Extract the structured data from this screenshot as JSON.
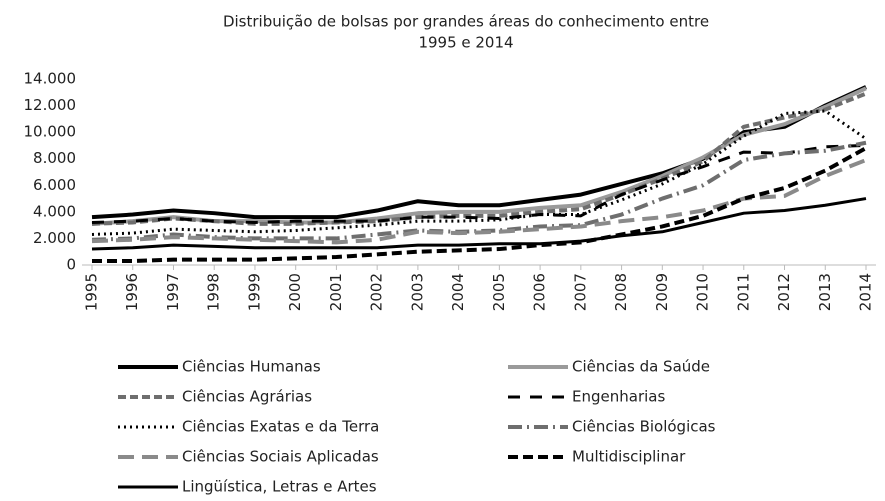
{
  "chart_data": {
    "type": "line",
    "title": [
      "Distribuição de bolsas por grandes áreas do conhecimento entre",
      "1995 e 2014"
    ],
    "categories": [
      "1995",
      "1996",
      "1997",
      "1998",
      "1999",
      "2000",
      "2001",
      "2002",
      "2003",
      "2004",
      "2005",
      "2006",
      "2007",
      "2008",
      "2009",
      "2010",
      "2011",
      "2012",
      "2013",
      "2014"
    ],
    "ylim": [
      0,
      14000
    ],
    "yticks": [
      0,
      {
        "value": 2000,
        "label": "2.000"
      },
      {
        "value": 4000,
        "label": "4.000"
      },
      {
        "value": 6000,
        "label": "6.000"
      },
      {
        "value": 8000,
        "label": "8.000"
      },
      {
        "value": 10000,
        "label": "10.000"
      },
      {
        "value": 12000,
        "label": "12.000"
      },
      {
        "value": 14000,
        "label": "14.000"
      }
    ],
    "legend": "bottom",
    "series": [
      {
        "name": "Ciências Humanas",
        "color": "#000000",
        "width": 4,
        "dash": "none",
        "values": [
          3600,
          3800,
          4100,
          3900,
          3600,
          3600,
          3600,
          4100,
          4800,
          4500,
          4500,
          4900,
          5300,
          6100,
          6900,
          8000,
          10000,
          10400,
          12000,
          13400
        ]
      },
      {
        "name": "Ciências da Saúde",
        "color": "#9a9a9a",
        "width": 4,
        "dash": "none",
        "values": [
          3100,
          3300,
          3600,
          3300,
          3300,
          3200,
          3200,
          3500,
          3900,
          4000,
          4000,
          4300,
          4500,
          5500,
          6700,
          8100,
          9800,
          10600,
          11900,
          13300
        ]
      },
      {
        "name": "Ciências Agrárias",
        "color": "#6e6e6e",
        "width": 4,
        "dash": "8 4",
        "values": [
          3100,
          3200,
          3500,
          3300,
          3100,
          3100,
          3200,
          3300,
          3600,
          3700,
          3700,
          4000,
          4200,
          5300,
          6500,
          7800,
          10400,
          11100,
          11700,
          12900
        ]
      },
      {
        "name": "Engenharias",
        "color": "#000000",
        "width": 3,
        "dash": "12 10",
        "values": [
          3200,
          3300,
          3500,
          3300,
          3200,
          3300,
          3300,
          3300,
          3600,
          3600,
          3500,
          3800,
          3700,
          5300,
          6400,
          7400,
          8500,
          8400,
          8900,
          9000
        ]
      },
      {
        "name": "Ciências Exatas e da Terra",
        "color": "#000000",
        "width": 3,
        "dash": "2 4",
        "values": [
          2300,
          2400,
          2700,
          2600,
          2500,
          2600,
          2800,
          3000,
          3300,
          3300,
          3400,
          3800,
          3800,
          4900,
          6100,
          7600,
          9700,
          11400,
          11600,
          9500
        ]
      },
      {
        "name": "Ciências Biológicas",
        "color": "#6e6e6e",
        "width": 4,
        "dash": "14 5 2 5",
        "values": [
          1900,
          2000,
          2300,
          2100,
          2000,
          2000,
          2000,
          2300,
          2600,
          2500,
          2600,
          2900,
          3000,
          3800,
          5000,
          6000,
          7900,
          8400,
          8600,
          9200
        ]
      },
      {
        "name": "Ciências Sociais Aplicadas",
        "color": "#8a8a8a",
        "width": 4,
        "dash": "16 8",
        "values": [
          1800,
          1900,
          2100,
          2000,
          1900,
          1800,
          1700,
          1900,
          2500,
          2400,
          2500,
          2700,
          2900,
          3300,
          3600,
          4100,
          5000,
          5200,
          6700,
          7900
        ]
      },
      {
        "name": "Multidisciplinar",
        "color": "#000000",
        "width": 4,
        "dash": "10 5",
        "values": [
          300,
          300,
          400,
          400,
          400,
          500,
          600,
          800,
          1000,
          1100,
          1200,
          1500,
          1700,
          2300,
          2900,
          3700,
          5000,
          5800,
          7100,
          8800
        ]
      },
      {
        "name": "Lingüística, Letras e Artes",
        "color": "#000000",
        "width": 3,
        "dash": "none",
        "values": [
          1200,
          1300,
          1500,
          1400,
          1300,
          1300,
          1300,
          1300,
          1500,
          1500,
          1600,
          1600,
          1800,
          2200,
          2500,
          3200,
          3900,
          4100,
          4500,
          5000
        ]
      }
    ]
  }
}
